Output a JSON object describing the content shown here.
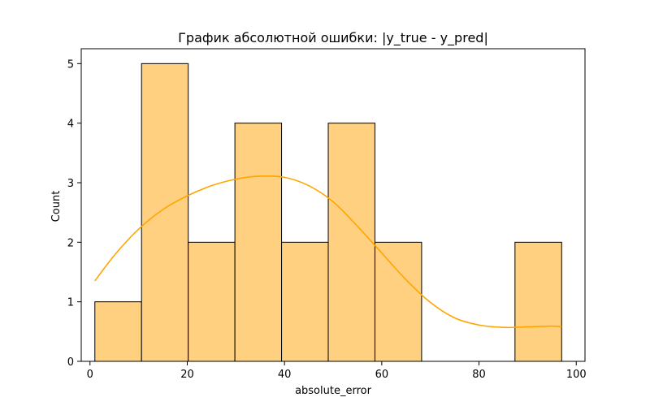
{
  "chart_data": {
    "type": "bar",
    "title": "График абсолютной ошибки: |y_true - y_pred|",
    "xlabel": "absolute_error",
    "ylabel": "Count",
    "xlim": [
      -1.8,
      101.8
    ],
    "ylim": [
      0,
      5.25
    ],
    "x_ticks": [
      0,
      20,
      40,
      60,
      80,
      100
    ],
    "y_ticks": [
      0,
      1,
      2,
      3,
      4,
      5
    ],
    "bins": [
      {
        "x0": 1.0,
        "x1": 10.6,
        "count": 1
      },
      {
        "x0": 10.6,
        "x1": 20.2,
        "count": 5
      },
      {
        "x0": 20.2,
        "x1": 29.8,
        "count": 2
      },
      {
        "x0": 29.8,
        "x1": 39.4,
        "count": 4
      },
      {
        "x0": 39.4,
        "x1": 49.0,
        "count": 2
      },
      {
        "x0": 49.0,
        "x1": 58.6,
        "count": 4
      },
      {
        "x0": 58.6,
        "x1": 68.2,
        "count": 2
      },
      {
        "x0": 68.2,
        "x1": 77.8,
        "count": 0
      },
      {
        "x0": 77.8,
        "x1": 87.4,
        "count": 0
      },
      {
        "x0": 87.4,
        "x1": 97.0,
        "count": 2
      }
    ],
    "kde": {
      "x": [
        1,
        5,
        10,
        15,
        20,
        25,
        30,
        35,
        40,
        45,
        50,
        55,
        60,
        65,
        70,
        75,
        80,
        85,
        90,
        95,
        97
      ],
      "y": [
        1.35,
        1.78,
        2.22,
        2.55,
        2.78,
        2.95,
        3.06,
        3.11,
        3.09,
        2.95,
        2.68,
        2.27,
        1.82,
        1.37,
        0.99,
        0.73,
        0.61,
        0.57,
        0.58,
        0.59,
        0.58
      ]
    },
    "colors": {
      "bar_fill": "#ffd07f",
      "bar_edge": "#000000",
      "kde_line": "#ffa500"
    },
    "grid": false,
    "legend": "none"
  }
}
